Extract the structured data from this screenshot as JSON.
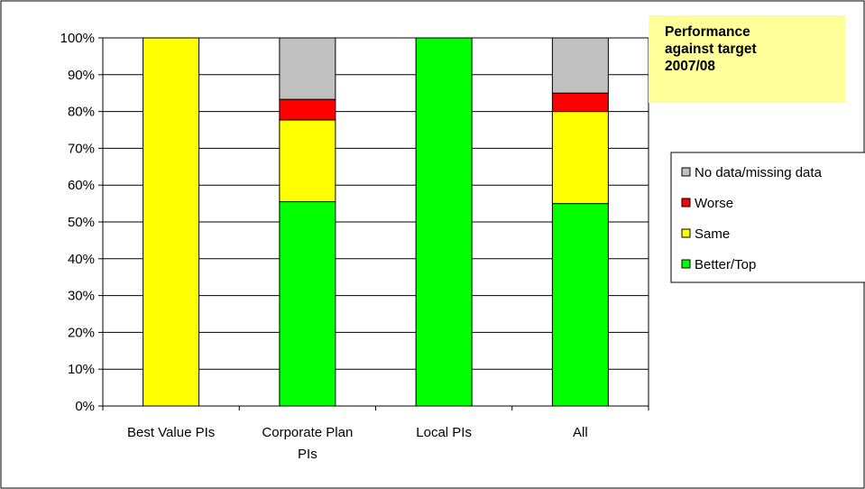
{
  "chart_data": {
    "type": "bar",
    "stacked": true,
    "title": "Performance against target 2007/08",
    "title_lines": [
      "Performance",
      "against target",
      "2007/08"
    ],
    "categories": [
      "Best Value PIs",
      "Corporate Plan PIs",
      "Local PIs",
      "All"
    ],
    "category_label_lines": [
      [
        "Best Value PIs"
      ],
      [
        "Corporate Plan",
        "PIs"
      ],
      [
        "Local PIs"
      ],
      [
        "All"
      ]
    ],
    "series": [
      {
        "name": "Better/Top",
        "color": "#00FF00",
        "values": [
          0,
          55.5,
          100,
          55
        ]
      },
      {
        "name": "Same",
        "color": "#FFFF00",
        "values": [
          100,
          22.2,
          0,
          25
        ]
      },
      {
        "name": "Worse",
        "color": "#FF0000",
        "values": [
          0,
          5.6,
          0,
          5
        ]
      },
      {
        "name": "No data/missing data",
        "color": "#C0C0C0",
        "values": [
          0,
          16.7,
          0,
          15
        ]
      }
    ],
    "legend_order": [
      "No data/missing data",
      "Worse",
      "Same",
      "Better/Top"
    ],
    "y_tick_labels": [
      "0%",
      "10%",
      "20%",
      "30%",
      "40%",
      "50%",
      "60%",
      "70%",
      "80%",
      "90%",
      "100%"
    ],
    "ylim": [
      0,
      100
    ],
    "grid": true,
    "legend_position": "right",
    "title_box_color": "#FFFF99"
  }
}
